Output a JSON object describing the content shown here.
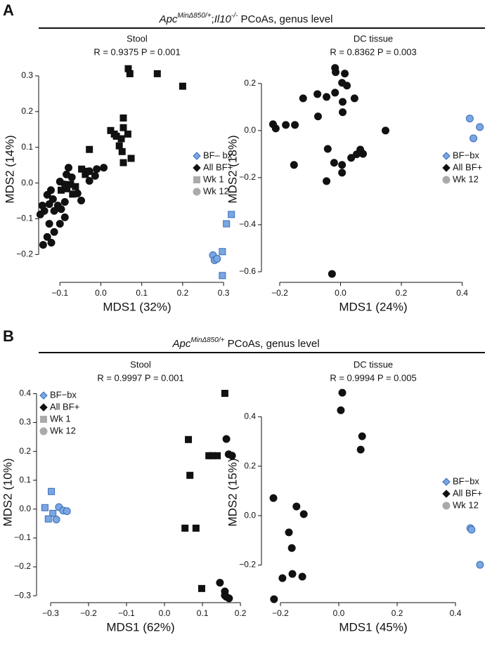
{
  "sections": [
    {
      "label": "A",
      "title": [
        {
          "text": "Apc",
          "style": "italic"
        },
        {
          "text": "MinΔ850/+",
          "style": "sup"
        },
        {
          "text": ";",
          "style": "plain"
        },
        {
          "text": "Il10",
          "style": "italic"
        },
        {
          "text": "-/-",
          "style": "sup"
        },
        {
          "text": " PCoAs, genus level",
          "style": "plain"
        }
      ]
    },
    {
      "label": "B",
      "title": [
        {
          "text": "Apc",
          "style": "italic"
        },
        {
          "text": "MinΔ850/+",
          "style": "sup"
        },
        {
          "text": " PCoAs, genus level",
          "style": "plain"
        }
      ]
    }
  ],
  "chart_data": [
    {
      "type": "scatter",
      "title": "Stool",
      "subtitle": "R = 0.9375 P = 0.001",
      "xlabel": "MDS1 (32%)",
      "ylabel": "MDS2 (14%)",
      "xlim": [
        -0.152,
        0.329
      ],
      "ylim": [
        -0.278,
        0.355
      ],
      "xticks": [
        {
          "value": -0.1,
          "label": "−0.1"
        },
        {
          "value": 0,
          "label": "0.0"
        },
        0.1,
        0.2,
        0.3
      ],
      "yticks": [
        {
          "value": -0.2,
          "label": "−0.2"
        },
        {
          "value": -0.1,
          "label": "−0.1"
        },
        {
          "value": 0,
          "label": "0.0"
        },
        0.1,
        0.2,
        0.3
      ],
      "legend_position": "right",
      "legend": [
        {
          "label": "BF– bx",
          "color": "#7aa6e3",
          "marker": "diamond"
        },
        {
          "label": "All BF+",
          "color": "#111111",
          "marker": "diamond"
        },
        {
          "label": "Wk 1",
          "color": "#aaaaaa",
          "marker": "square"
        },
        {
          "label": "Wk 12",
          "color": "#aaaaaa",
          "marker": "circle"
        }
      ],
      "series": [
        {
          "marker": "square",
          "color": "#111111",
          "x": [
            0.067,
            0.071,
            0.138,
            0.2,
            0.024,
            0.033,
            0.055,
            0.038,
            0.055,
            0.05,
            0.045,
            0.066,
            0.052,
            0.074,
            0.055,
            -0.028,
            -0.047,
            -0.038,
            -0.031,
            -0.062,
            -0.083,
            -0.074,
            -0.097,
            -0.069
          ],
          "y": [
            0.32,
            0.306,
            0.306,
            0.271,
            0.147,
            0.137,
            0.155,
            0.131,
            0.182,
            0.124,
            0.104,
            0.137,
            0.088,
            0.069,
            0.057,
            0.094,
            0.039,
            0.024,
            0.033,
            -0.01,
            -0.016,
            -0.004,
            -0.02,
            -0.031
          ]
        },
        {
          "marker": "circle",
          "color": "#111111",
          "x": [
            -0.143,
            -0.131,
            -0.126,
            -0.117,
            -0.138,
            -0.148,
            -0.105,
            -0.097,
            -0.088,
            -0.114,
            -0.126,
            -0.1,
            -0.088,
            -0.114,
            -0.131,
            -0.141,
            -0.121,
            -0.122,
            -0.1,
            -0.079,
            -0.084,
            -0.028,
            -0.01,
            0.007,
            -0.014,
            -0.028,
            -0.057,
            -0.048,
            -0.088,
            -0.071
          ],
          "y": [
            -0.063,
            -0.033,
            -0.059,
            -0.045,
            -0.078,
            -0.088,
            -0.063,
            -0.073,
            -0.053,
            -0.078,
            -0.114,
            -0.114,
            -0.096,
            -0.137,
            -0.151,
            -0.173,
            -0.167,
            -0.02,
            0.004,
            0.043,
            0.024,
            0.006,
            0.039,
            0.043,
            0.02,
            0.033,
            -0.029,
            -0.049,
            -0.004,
            0.016
          ]
        },
        {
          "marker": "square",
          "color": "#7aa6e3",
          "x": [
            0.319,
            0.307,
            0.297,
            0.297
          ],
          "y": [
            -0.088,
            -0.114,
            -0.192,
            -0.259
          ]
        },
        {
          "marker": "circle",
          "color": "#7aa6e3",
          "x": [
            0.274,
            0.278,
            0.284
          ],
          "y": [
            -0.202,
            -0.216,
            -0.212
          ]
        }
      ]
    },
    {
      "type": "scatter",
      "title": "DC tissue",
      "subtitle": "R = 0.8362 P = 0.003",
      "xlabel": "MDS1 (24%)",
      "ylabel": "MDS2 (18%)",
      "xlim": [
        -0.26,
        0.475
      ],
      "ylim": [
        -0.645,
        0.316
      ],
      "xticks": [
        {
          "value": -0.2,
          "label": "−0.2"
        },
        {
          "value": 0,
          "label": "0.0"
        },
        0.2,
        0.4
      ],
      "yticks": [
        0.2,
        {
          "value": 0,
          "label": "0.0"
        },
        {
          "value": -0.2,
          "label": "−0.2"
        },
        {
          "value": -0.4,
          "label": "−0.4"
        },
        {
          "value": -0.6,
          "label": "−0.6"
        }
      ],
      "legend_position": "right",
      "legend": [
        {
          "label": "BF−bx",
          "color": "#7aa6e3",
          "marker": "diamond"
        },
        {
          "label": "All BF+",
          "color": "#111111",
          "marker": "diamond"
        },
        {
          "label": "Wk 12",
          "color": "#aaaaaa",
          "marker": "circle"
        }
      ],
      "series": [
        {
          "marker": "circle",
          "color": "#111111",
          "x": [
            -0.018,
            -0.016,
            0.014,
            0.005,
            0.021,
            -0.018,
            -0.076,
            -0.046,
            -0.123,
            0.007,
            0.046,
            -0.074,
            0.007,
            -0.18,
            -0.15,
            -0.222,
            -0.213,
            0.148,
            -0.042,
            0.065,
            0.053,
            0.074,
            0.035,
            0.005,
            -0.021,
            0.005,
            -0.153,
            -0.046,
            -0.028
          ],
          "y": [
            0.266,
            0.248,
            0.242,
            0.203,
            0.191,
            0.161,
            0.155,
            0.143,
            0.137,
            0.122,
            0.137,
            0.06,
            0.078,
            0.024,
            0.024,
            0.027,
            0.009,
            0,
            -0.078,
            -0.081,
            -0.101,
            -0.099,
            -0.116,
            -0.146,
            -0.137,
            -0.179,
            -0.146,
            -0.215,
            -0.609
          ]
        },
        {
          "marker": "circle",
          "color": "#7aa6e3",
          "x": [
            0.425,
            0.458,
            0.437
          ],
          "y": [
            0.051,
            0.015,
            -0.033
          ]
        }
      ]
    },
    {
      "type": "scatter",
      "title": "Stool",
      "subtitle": "R = 0.9997 P = 0.001",
      "xlabel": "MDS1 (62%)",
      "ylabel": "MDS2 (10%)",
      "xlim": [
        -0.337,
        0.211
      ],
      "ylim": [
        -0.324,
        0.44
      ],
      "xticks": [
        {
          "value": -0.3,
          "label": "−0.3"
        },
        {
          "value": -0.2,
          "label": "−0.2"
        },
        {
          "value": -0.1,
          "label": "−0.1"
        },
        {
          "value": 0,
          "label": "0.0"
        },
        0.1,
        0.2
      ],
      "yticks": [
        0.4,
        0.3,
        0.2,
        0.1,
        {
          "value": 0,
          "label": "0.0"
        },
        {
          "value": -0.1,
          "label": "−0.1"
        },
        {
          "value": -0.2,
          "label": "−0.2"
        },
        {
          "value": -0.3,
          "label": "−0.3"
        }
      ],
      "legend_position": "left",
      "legend": [
        {
          "label": "BF−bx",
          "color": "#7aa6e3",
          "marker": "diamond"
        },
        {
          "label": "All BF+",
          "color": "#111111",
          "marker": "diamond"
        },
        {
          "label": "Wk 1",
          "color": "#aaaaaa",
          "marker": "square"
        },
        {
          "label": "Wk 12",
          "color": "#aaaaaa",
          "marker": "circle"
        }
      ],
      "series": [
        {
          "marker": "square",
          "color": "#111111",
          "x": [
            0.159,
            0.063,
            0.067,
            0.117,
            0.126,
            0.139,
            0.054,
            0.083,
            0.098
          ],
          "y": [
            0.401,
            0.241,
            0.117,
            0.185,
            0.185,
            0.185,
            -0.066,
            -0.066,
            -0.275
          ]
        },
        {
          "marker": "circle",
          "color": "#111111",
          "x": [
            0.163,
            0.169,
            0.178,
            0.146,
            0.159,
            0.163,
            0.17,
            0.159
          ],
          "y": [
            0.243,
            0.19,
            0.185,
            -0.255,
            -0.285,
            -0.304,
            -0.309,
            -0.299
          ]
        },
        {
          "marker": "square",
          "color": "#7aa6e3",
          "x": [
            -0.298,
            -0.315,
            -0.294,
            -0.306
          ],
          "y": [
            0.061,
            0.005,
            -0.015,
            -0.034
          ]
        },
        {
          "marker": "circle",
          "color": "#7aa6e3",
          "x": [
            -0.278,
            -0.267,
            -0.257,
            -0.285
          ],
          "y": [
            0.007,
            -0.005,
            -0.007,
            -0.036
          ]
        }
      ]
    },
    {
      "type": "scatter",
      "title": "DC tissue",
      "subtitle": "R = 0.9994 P = 0.005",
      "xlabel": "MDS1 (45%)",
      "ylabel": "MDS2 (15%)",
      "xlim": [
        -0.265,
        0.501
      ],
      "ylim": [
        -0.352,
        0.54
      ],
      "xticks": [
        {
          "value": -0.2,
          "label": "−0.2"
        },
        {
          "value": 0,
          "label": "0.0"
        },
        0.2,
        0.4
      ],
      "yticks": [
        0.4,
        0.2,
        {
          "value": 0,
          "label": "0.0"
        },
        {
          "value": -0.2,
          "label": "−0.2"
        }
      ],
      "legend_position": "right",
      "legend": [
        {
          "label": "BF−bx",
          "color": "#7aa6e3",
          "marker": "diamond"
        },
        {
          "label": "All BF+",
          "color": "#111111",
          "marker": "diamond"
        },
        {
          "label": "Wk 12",
          "color": "#aaaaaa",
          "marker": "circle"
        }
      ],
      "series": [
        {
          "marker": "circle",
          "color": "#111111",
          "x": [
            0.012,
            0.007,
            0.08,
            0.075,
            -0.224,
            -0.145,
            -0.12,
            -0.171,
            -0.161,
            -0.159,
            -0.193,
            -0.125,
            -0.222
          ],
          "y": [
            0.497,
            0.426,
            0.321,
            0.267,
            0.071,
            0.037,
            0.006,
            -0.068,
            -0.131,
            -0.236,
            -0.253,
            -0.247,
            -0.338
          ]
        },
        {
          "marker": "circle",
          "color": "#7aa6e3",
          "x": [
            0.451,
            0.455,
            0.484
          ],
          "y": [
            -0.051,
            -0.057,
            -0.199
          ]
        }
      ]
    }
  ]
}
